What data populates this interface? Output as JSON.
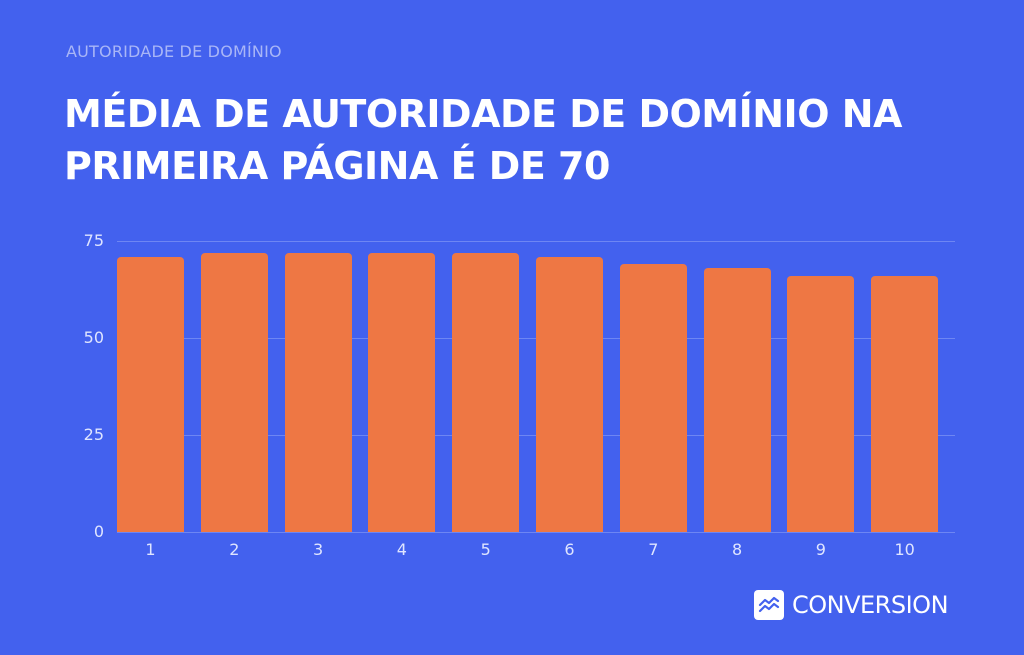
{
  "header": {
    "eyebrow": "AUTORIDADE DE DOMÍNIO",
    "title": "MÉDIA DE AUTORIDADE DE DOMÍNIO NA PRIMEIRA PÁGINA É DE 70"
  },
  "brand": {
    "name": "CONVERSION",
    "icon": "chart-lines-icon"
  },
  "colors": {
    "background": "#4361ee",
    "bar": "#ee7744",
    "text": "#ffffff"
  },
  "chart_data": {
    "type": "bar",
    "title": "MÉDIA DE AUTORIDADE DE DOMÍNIO NA PRIMEIRA PÁGINA É DE 70",
    "subtitle": "AUTORIDADE DE DOMÍNIO",
    "xlabel": "",
    "ylabel": "",
    "categories": [
      "1",
      "2",
      "3",
      "4",
      "5",
      "6",
      "7",
      "8",
      "9",
      "10"
    ],
    "values": [
      71,
      72,
      72,
      72,
      72,
      71,
      69,
      68,
      66,
      66
    ],
    "ylim": [
      0,
      75
    ],
    "yticks": [
      "0",
      "25",
      "50",
      "75"
    ],
    "grid": true,
    "legend": "none"
  }
}
